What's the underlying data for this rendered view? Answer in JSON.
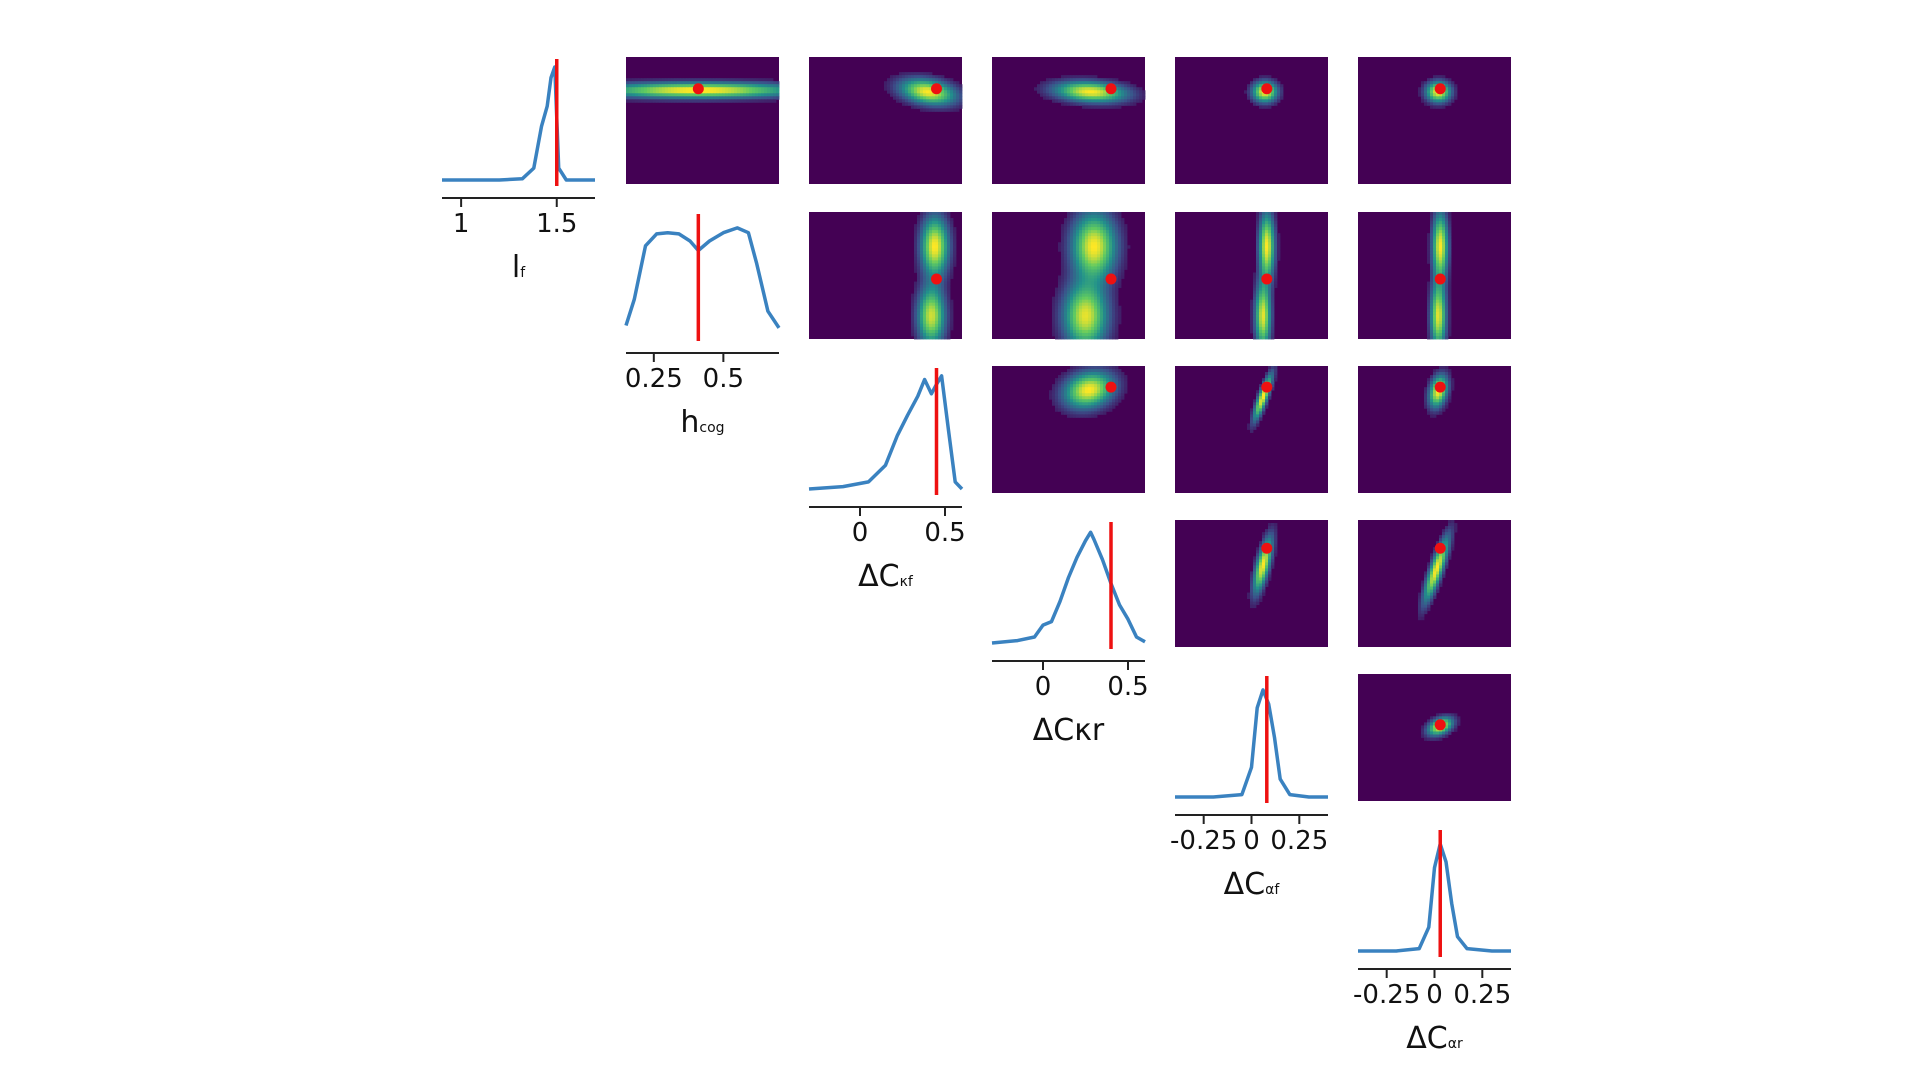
{
  "chart_data": {
    "type": "corner",
    "parameters": [
      {
        "name": "lf",
        "label": "l",
        "sub": "f",
        "range": [
          0.9,
          1.7
        ],
        "ticks": [
          "1",
          "1.5"
        ],
        "tick_values": [
          1,
          1.5
        ],
        "truth": 1.5
      },
      {
        "name": "hcog",
        "label": "h",
        "sub": "cog",
        "range": [
          0.15,
          0.7
        ],
        "ticks": [
          "0.25",
          "0.5"
        ],
        "tick_values": [
          0.25,
          0.5
        ],
        "truth": 0.41
      },
      {
        "name": "dCkf",
        "label": "ΔC",
        "sub": "κf",
        "range": [
          -0.3,
          0.6
        ],
        "ticks": [
          "0",
          "0.5"
        ],
        "tick_values": [
          0,
          0.5
        ],
        "truth": 0.45
      },
      {
        "name": "dCkr",
        "label": "ΔCκr",
        "sub": "",
        "range": [
          -0.3,
          0.6
        ],
        "ticks": [
          "0",
          "0.5"
        ],
        "tick_values": [
          0,
          0.5
        ],
        "truth": 0.4
      },
      {
        "name": "dCaf",
        "label": "ΔC",
        "sub": "αf",
        "range": [
          -0.4,
          0.4
        ],
        "ticks": [
          "-0.25",
          "0",
          "0.25"
        ],
        "tick_values": [
          -0.25,
          0,
          0.25
        ],
        "truth": 0.08
      },
      {
        "name": "dCar",
        "label": "ΔC",
        "sub": "αr",
        "range": [
          -0.4,
          0.4
        ],
        "ticks": [
          "-0.25",
          "0",
          "0.25"
        ],
        "tick_values": [
          -0.25,
          0,
          0.25
        ],
        "truth": 0.03
      }
    ],
    "marginals": [
      {
        "x": [
          0.9,
          1.2,
          1.32,
          1.38,
          1.42,
          1.45,
          1.47,
          1.49,
          1.51,
          1.55,
          1.7
        ],
        "y": [
          0.0,
          0.0,
          0.01,
          0.1,
          0.45,
          0.62,
          0.86,
          0.95,
          0.1,
          0.0,
          0.0
        ]
      },
      {
        "x": [
          0.15,
          0.18,
          0.22,
          0.26,
          0.3,
          0.34,
          0.38,
          0.41,
          0.45,
          0.5,
          0.55,
          0.59,
          0.62,
          0.66,
          0.7
        ],
        "y": [
          0.08,
          0.3,
          0.75,
          0.85,
          0.86,
          0.85,
          0.79,
          0.71,
          0.79,
          0.86,
          0.9,
          0.86,
          0.6,
          0.2,
          0.06
        ]
      },
      {
        "x": [
          -0.3,
          -0.1,
          0.05,
          0.15,
          0.22,
          0.28,
          0.34,
          0.38,
          0.42,
          0.45,
          0.48,
          0.52,
          0.56,
          0.6
        ],
        "y": [
          0.0,
          0.02,
          0.06,
          0.2,
          0.45,
          0.62,
          0.78,
          0.92,
          0.8,
          0.88,
          0.95,
          0.5,
          0.06,
          0.0
        ]
      },
      {
        "x": [
          -0.3,
          -0.15,
          -0.05,
          0.0,
          0.05,
          0.1,
          0.15,
          0.2,
          0.25,
          0.28,
          0.3,
          0.35,
          0.4,
          0.45,
          0.5,
          0.55,
          0.6
        ],
        "y": [
          0.0,
          0.02,
          0.05,
          0.15,
          0.18,
          0.35,
          0.55,
          0.72,
          0.86,
          0.93,
          0.87,
          0.7,
          0.5,
          0.32,
          0.2,
          0.05,
          0.01
        ]
      },
      {
        "x": [
          -0.4,
          -0.2,
          -0.05,
          0.0,
          0.03,
          0.06,
          0.09,
          0.12,
          0.15,
          0.2,
          0.3,
          0.4
        ],
        "y": [
          0.0,
          0.0,
          0.02,
          0.25,
          0.75,
          0.9,
          0.78,
          0.5,
          0.15,
          0.02,
          0.0,
          0.0
        ]
      },
      {
        "x": [
          -0.4,
          -0.2,
          -0.08,
          -0.03,
          0.0,
          0.03,
          0.06,
          0.09,
          0.12,
          0.17,
          0.3,
          0.4
        ],
        "y": [
          0.0,
          0.0,
          0.02,
          0.2,
          0.7,
          0.9,
          0.75,
          0.4,
          0.12,
          0.02,
          0.0,
          0.0
        ]
      }
    ],
    "pairs": [
      {
        "row": 0,
        "col": 1,
        "blobs": [
          {
            "cx": 0.41,
            "cy": 1.49,
            "sx": 0.22,
            "sy": 0.03,
            "rho": 0,
            "w": 1
          }
        ]
      },
      {
        "row": 0,
        "col": 2,
        "blobs": [
          {
            "cx": 0.4,
            "cy": 1.48,
            "sx": 0.1,
            "sy": 0.05,
            "rho": -0.3,
            "w": 1
          }
        ]
      },
      {
        "row": 0,
        "col": 3,
        "blobs": [
          {
            "cx": 0.28,
            "cy": 1.48,
            "sx": 0.13,
            "sy": 0.04,
            "rho": -0.2,
            "w": 1
          }
        ]
      },
      {
        "row": 0,
        "col": 4,
        "blobs": [
          {
            "cx": 0.07,
            "cy": 1.48,
            "sx": 0.04,
            "sy": 0.04,
            "rho": 0,
            "w": 1
          }
        ]
      },
      {
        "row": 0,
        "col": 5,
        "blobs": [
          {
            "cx": 0.02,
            "cy": 1.48,
            "sx": 0.04,
            "sy": 0.04,
            "rho": 0,
            "w": 1
          }
        ]
      },
      {
        "row": 1,
        "col": 2,
        "blobs": [
          {
            "cx": 0.44,
            "cy": 0.55,
            "sx": 0.05,
            "sy": 0.08,
            "rho": 0,
            "w": 1
          },
          {
            "cx": 0.42,
            "cy": 0.25,
            "sx": 0.05,
            "sy": 0.08,
            "rho": 0,
            "w": 0.9
          }
        ]
      },
      {
        "row": 1,
        "col": 3,
        "blobs": [
          {
            "cx": 0.3,
            "cy": 0.55,
            "sx": 0.08,
            "sy": 0.09,
            "rho": 0,
            "w": 1
          },
          {
            "cx": 0.25,
            "cy": 0.25,
            "sx": 0.08,
            "sy": 0.09,
            "rho": 0,
            "w": 0.95
          }
        ]
      },
      {
        "row": 1,
        "col": 4,
        "blobs": [
          {
            "cx": 0.08,
            "cy": 0.55,
            "sx": 0.025,
            "sy": 0.09,
            "rho": 0,
            "w": 1
          },
          {
            "cx": 0.06,
            "cy": 0.25,
            "sx": 0.025,
            "sy": 0.09,
            "rho": 0,
            "w": 0.95
          }
        ]
      },
      {
        "row": 1,
        "col": 5,
        "blobs": [
          {
            "cx": 0.03,
            "cy": 0.55,
            "sx": 0.025,
            "sy": 0.09,
            "rho": 0,
            "w": 1
          },
          {
            "cx": 0.02,
            "cy": 0.25,
            "sx": 0.025,
            "sy": 0.09,
            "rho": 0,
            "w": 0.95
          }
        ]
      },
      {
        "row": 2,
        "col": 3,
        "blobs": [
          {
            "cx": 0.27,
            "cy": 0.43,
            "sx": 0.09,
            "sy": 0.08,
            "rho": 0.2,
            "w": 1
          }
        ]
      },
      {
        "row": 2,
        "col": 4,
        "blobs": [
          {
            "cx": 0.06,
            "cy": 0.38,
            "sx": 0.03,
            "sy": 0.1,
            "rho": 0.85,
            "w": 1
          }
        ]
      },
      {
        "row": 2,
        "col": 5,
        "blobs": [
          {
            "cx": 0.02,
            "cy": 0.42,
            "sx": 0.03,
            "sy": 0.07,
            "rho": 0.3,
            "w": 1
          }
        ]
      },
      {
        "row": 3,
        "col": 4,
        "blobs": [
          {
            "cx": 0.06,
            "cy": 0.28,
            "sx": 0.03,
            "sy": 0.12,
            "rho": 0.7,
            "w": 1
          }
        ]
      },
      {
        "row": 3,
        "col": 5,
        "blobs": [
          {
            "cx": 0.01,
            "cy": 0.25,
            "sx": 0.04,
            "sy": 0.14,
            "rho": 0.85,
            "w": 1
          }
        ]
      },
      {
        "row": 4,
        "col": 5,
        "blobs": [
          {
            "cx": 0.03,
            "cy": 0.07,
            "sx": 0.04,
            "sy": 0.035,
            "rho": 0.4,
            "w": 1
          }
        ]
      }
    ],
    "colors": {
      "background": "#440154",
      "marginal_line": "#3a82c0",
      "truth": "#ee1111"
    }
  }
}
